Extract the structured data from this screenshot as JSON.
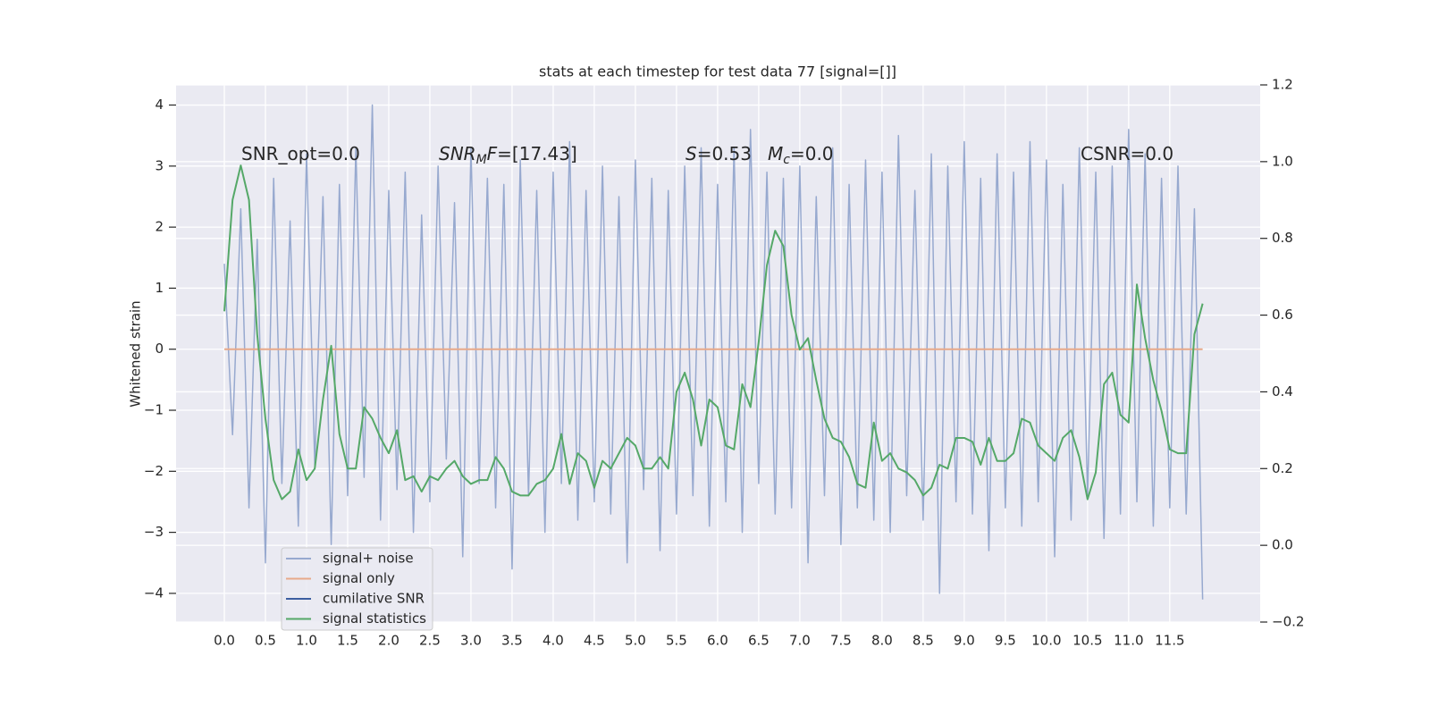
{
  "chart_data": {
    "type": "line",
    "title": "stats at each timestep for test data 77 [signal=[]]",
    "y_label": "Whitened strain",
    "x": [
      0.0,
      0.1,
      0.2,
      0.3,
      0.4,
      0.5,
      0.6,
      0.7,
      0.8,
      0.9,
      1.0,
      1.1,
      1.2,
      1.3,
      1.4,
      1.5,
      1.6,
      1.7,
      1.8,
      1.9,
      2.0,
      2.1,
      2.2,
      2.3,
      2.4,
      2.5,
      2.6,
      2.7,
      2.8,
      2.9,
      3.0,
      3.1,
      3.2,
      3.3,
      3.4,
      3.5,
      3.6,
      3.7,
      3.8,
      3.9,
      4.0,
      4.1,
      4.2,
      4.3,
      4.4,
      4.5,
      4.6,
      4.7,
      4.8,
      4.9,
      5.0,
      5.1,
      5.2,
      5.3,
      5.4,
      5.5,
      5.6,
      5.7,
      5.8,
      5.9,
      6.0,
      6.1,
      6.2,
      6.3,
      6.4,
      6.5,
      6.6,
      6.7,
      6.8,
      6.9,
      7.0,
      7.1,
      7.2,
      7.3,
      7.4,
      7.5,
      7.6,
      7.7,
      7.8,
      7.9,
      8.0,
      8.1,
      8.2,
      8.3,
      8.4,
      8.5,
      8.6,
      8.7,
      8.8,
      8.9,
      9.0,
      9.1,
      9.2,
      9.3,
      9.4,
      9.5,
      9.6,
      9.7,
      9.8,
      9.9,
      10.0,
      10.1,
      10.2,
      10.3,
      10.4,
      10.5,
      10.6,
      10.7,
      10.8,
      10.9,
      11.0,
      11.1,
      11.2,
      11.3,
      11.4,
      11.5,
      11.6,
      11.7,
      11.8,
      11.9
    ],
    "series": [
      {
        "name": "signal+ noise",
        "color": "#97a9cf",
        "values": [
          1.4,
          -1.4,
          2.3,
          -2.6,
          1.8,
          -3.5,
          2.8,
          -2.2,
          2.1,
          -2.9,
          3.2,
          -1.9,
          2.5,
          -3.2,
          2.7,
          -2.4,
          3.3,
          -2.1,
          4.0,
          -2.8,
          2.6,
          -2.3,
          2.9,
          -3.0,
          2.2,
          -2.5,
          3.0,
          -1.8,
          2.4,
          -3.4,
          3.3,
          -2.2,
          2.8,
          -2.6,
          2.7,
          -3.6,
          3.1,
          -2.4,
          2.6,
          -3.0,
          2.9,
          -2.2,
          3.4,
          -2.8,
          2.6,
          -2.5,
          3.0,
          -2.7,
          2.5,
          -3.5,
          3.1,
          -2.3,
          2.8,
          -3.3,
          2.6,
          -2.7,
          3.0,
          -2.4,
          3.3,
          -2.9,
          2.7,
          -2.5,
          3.3,
          -3.0,
          3.6,
          -2.2,
          2.9,
          -2.7,
          2.8,
          -2.6,
          3.0,
          -3.5,
          2.5,
          -2.4,
          3.3,
          -3.2,
          2.7,
          -2.6,
          3.1,
          -2.8,
          2.9,
          -3.0,
          3.5,
          -2.4,
          2.6,
          -2.8,
          3.2,
          -4.0,
          3.0,
          -2.5,
          3.4,
          -2.7,
          2.8,
          -3.3,
          3.2,
          -2.6,
          2.9,
          -2.9,
          3.4,
          -2.5,
          3.1,
          -3.4,
          2.7,
          -2.8,
          3.3,
          -2.4,
          2.9,
          -3.1,
          3.0,
          -2.7,
          3.6,
          -2.5,
          3.2,
          -2.9,
          2.8,
          -2.6,
          3.0,
          -2.7,
          2.3,
          -4.1
        ]
      },
      {
        "name": "signal only",
        "color": "#e8a98a",
        "x": [
          0.0,
          11.9
        ],
        "values": [
          0,
          0
        ]
      },
      {
        "name": "cumilative SNR",
        "color": "#3c5ea0"
      },
      {
        "name": "signal statistics",
        "color": "#55a868",
        "axis": "y2",
        "values": [
          0.61,
          0.9,
          0.99,
          0.9,
          0.55,
          0.33,
          0.17,
          0.12,
          0.14,
          0.25,
          0.17,
          0.2,
          0.38,
          0.52,
          0.29,
          0.2,
          0.2,
          0.36,
          0.33,
          0.28,
          0.24,
          0.3,
          0.17,
          0.18,
          0.14,
          0.18,
          0.17,
          0.2,
          0.22,
          0.18,
          0.16,
          0.17,
          0.17,
          0.23,
          0.2,
          0.14,
          0.13,
          0.13,
          0.16,
          0.17,
          0.2,
          0.29,
          0.16,
          0.24,
          0.22,
          0.15,
          0.22,
          0.2,
          0.24,
          0.28,
          0.26,
          0.2,
          0.2,
          0.23,
          0.2,
          0.4,
          0.45,
          0.38,
          0.26,
          0.38,
          0.36,
          0.26,
          0.25,
          0.42,
          0.36,
          0.53,
          0.73,
          0.82,
          0.78,
          0.6,
          0.51,
          0.54,
          0.43,
          0.33,
          0.28,
          0.27,
          0.23,
          0.16,
          0.15,
          0.32,
          0.22,
          0.24,
          0.2,
          0.19,
          0.17,
          0.13,
          0.15,
          0.21,
          0.2,
          0.28,
          0.28,
          0.27,
          0.21,
          0.28,
          0.22,
          0.22,
          0.24,
          0.33,
          0.32,
          0.26,
          0.24,
          0.22,
          0.28,
          0.3,
          0.23,
          0.12,
          0.19,
          0.42,
          0.45,
          0.34,
          0.32,
          0.68,
          0.54,
          0.43,
          0.35,
          0.25,
          0.24,
          0.24,
          0.55,
          0.63
        ]
      }
    ],
    "annotations": [
      {
        "parts": [
          {
            "text": "SNR_opt=0.0"
          }
        ]
      },
      {
        "parts": [
          {
            "text": "SNR",
            "style": "italic"
          },
          {
            "text": "M",
            "style": "italic-sub"
          },
          {
            "text": "F",
            "style": "italic"
          },
          {
            "text": "=[17.43]"
          }
        ]
      },
      {
        "parts": [
          {
            "text": "S",
            "style": "italic"
          },
          {
            "text": "=0.53"
          }
        ]
      },
      {
        "parts": [
          {
            "text": "M",
            "style": "italic"
          },
          {
            "text": "c",
            "style": "italic-sub"
          },
          {
            "text": "=0.0"
          }
        ]
      },
      {
        "parts": [
          {
            "text": "CSNR=0.0"
          }
        ]
      }
    ],
    "xlim": [
      -0.587,
      12.6
    ],
    "xticks": [
      {
        "value": 0,
        "label": "0.0"
      },
      0.5,
      {
        "value": 1,
        "label": "1.0"
      },
      1.5,
      {
        "value": 2,
        "label": "2.0"
      },
      2.5,
      {
        "value": 3,
        "label": "3.0"
      },
      3.5,
      {
        "value": 4,
        "label": "4.0"
      },
      4.5,
      {
        "value": 5,
        "label": "5.0"
      },
      5.5,
      {
        "value": 6,
        "label": "6.0"
      },
      6.5,
      {
        "value": 7,
        "label": "7.0"
      },
      7.5,
      {
        "value": 8,
        "label": "8.0"
      },
      8.5,
      {
        "value": 9,
        "label": "9.0"
      },
      9.5,
      {
        "value": 10,
        "label": "10.0"
      },
      10.5,
      {
        "value": 11,
        "label": "11.0"
      },
      11.5
    ],
    "ylim": [
      -4.47,
      4.33
    ],
    "yticks": [
      {
        "value": -4,
        "label": "−4"
      },
      {
        "value": -3,
        "label": "−3"
      },
      {
        "value": -2,
        "label": "−2"
      },
      {
        "value": -1,
        "label": "−1"
      },
      0,
      1,
      2,
      3,
      4
    ],
    "y2lim": [
      -0.2,
      1.2
    ],
    "y2ticks": [
      {
        "value": -0.2,
        "label": "−0.2"
      },
      {
        "value": 0,
        "label": "0.0"
      },
      0.2,
      0.4,
      0.6,
      0.8,
      {
        "value": 1,
        "label": "1.0"
      },
      {
        "value": 1.2,
        "label": "1.2"
      }
    ],
    "grid": true,
    "legend": "lower left"
  }
}
